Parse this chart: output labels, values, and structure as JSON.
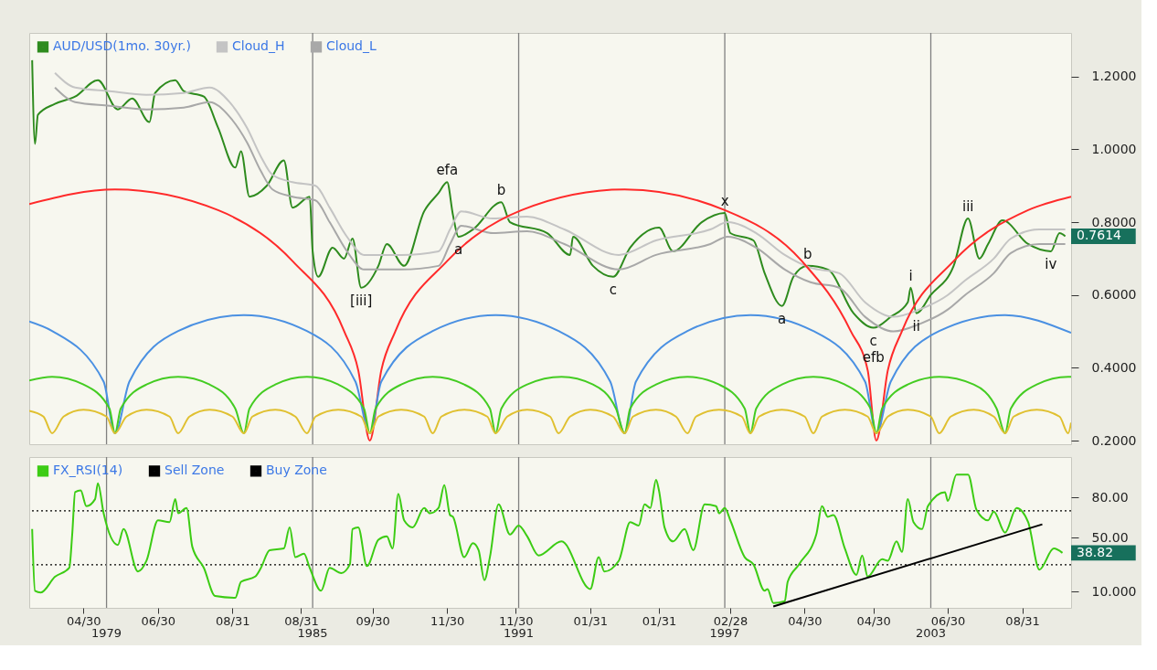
{
  "chart_data": [
    {
      "type": "line",
      "legend": "top left",
      "tick_labels": "y",
      "xlim": [
        "1976-10",
        "2007-02"
      ],
      "ylim": [
        0.19,
        1.32
      ],
      "yticks": [
        {
          "value": 0.2,
          "label": "0.2000"
        },
        {
          "value": 0.4,
          "label": "0.4000"
        },
        {
          "value": 0.6,
          "label": "0.6000"
        },
        {
          "value": 0.8,
          "label": "0.8000"
        },
        {
          "value": 1.0,
          "label": "1.0000"
        },
        {
          "value": 1.2,
          "label": "1.2000"
        }
      ],
      "series": [
        {
          "name": "AUD/USD(1mo. 30yr.)",
          "color": "#2e8b1e",
          "x": [
            "1976-11",
            "1976-12",
            "1977-01",
            "1977-07",
            "1978-02",
            "1978-10",
            "1979-05",
            "1979-10",
            "1980-04",
            "1980-06",
            "1981-01",
            "1981-04",
            "1981-11",
            "1982-04",
            "1982-10",
            "1982-12",
            "1983-03",
            "1983-09",
            "1984-03",
            "1984-06",
            "1984-12",
            "1985-01",
            "1985-03",
            "1985-08",
            "1985-12",
            "1986-03",
            "1986-06",
            "1986-12",
            "1987-03",
            "1987-09",
            "1988-04",
            "1988-09",
            "1988-12",
            "1989-02",
            "1989-04",
            "1989-09",
            "1990-07",
            "1990-10",
            "1991-11",
            "1992-07",
            "1992-08",
            "1993-03",
            "1993-10",
            "1994-04",
            "1995-02",
            "1995-07",
            "1996-05",
            "1997-01",
            "1997-03",
            "1997-11",
            "1998-03",
            "1998-09",
            "1999-01",
            "1999-06",
            "2000-01",
            "2000-10",
            "2001-05",
            "2001-11",
            "2002-05",
            "2002-06",
            "2002-08",
            "2003-01",
            "2003-09",
            "2004-02",
            "2004-06",
            "2004-09",
            "2005-02",
            "2005-11",
            "2006-07",
            "2006-10",
            "2006-12"
          ],
          "values": [
            1.245,
            1.015,
            1.095,
            1.125,
            1.145,
            1.19,
            1.11,
            1.14,
            1.075,
            1.155,
            1.19,
            1.16,
            1.145,
            1.06,
            0.95,
            0.995,
            0.87,
            0.9,
            0.97,
            0.84,
            0.87,
            0.72,
            0.65,
            0.73,
            0.7,
            0.755,
            0.62,
            0.68,
            0.74,
            0.68,
            0.83,
            0.88,
            0.91,
            0.82,
            0.76,
            0.78,
            0.855,
            0.8,
            0.77,
            0.71,
            0.76,
            0.68,
            0.65,
            0.73,
            0.785,
            0.72,
            0.8,
            0.825,
            0.77,
            0.75,
            0.66,
            0.57,
            0.65,
            0.68,
            0.67,
            0.55,
            0.51,
            0.54,
            0.58,
            0.62,
            0.55,
            0.6,
            0.68,
            0.81,
            0.7,
            0.74,
            0.805,
            0.74,
            0.72,
            0.77,
            0.7614
          ]
        },
        {
          "name": "Cloud_H",
          "color": "#c4c4c4",
          "x": [
            "1977-07",
            "1978-02",
            "1979-02",
            "1980-03",
            "1981-04",
            "1982-01",
            "1982-08",
            "1983-02",
            "1983-07",
            "1983-11",
            "1984-06",
            "1985-02",
            "1985-07",
            "1986-01",
            "1986-07",
            "1987-08",
            "1988-09",
            "1989-01",
            "1989-05",
            "1990-04",
            "1991-04",
            "1992-05",
            "1993-12",
            "1995-01",
            "1996-08",
            "1997-02",
            "1997-12",
            "1998-10",
            "1999-07",
            "2000-05",
            "2001-02",
            "2001-12",
            "2002-09",
            "2003-07",
            "2004-01",
            "2004-11",
            "2005-05",
            "2006-03",
            "2006-12"
          ],
          "values": [
            1.21,
            1.17,
            1.16,
            1.15,
            1.155,
            1.17,
            1.13,
            1.06,
            0.98,
            0.93,
            0.91,
            0.9,
            0.84,
            0.76,
            0.71,
            0.71,
            0.72,
            0.78,
            0.83,
            0.81,
            0.815,
            0.78,
            0.71,
            0.75,
            0.78,
            0.8,
            0.77,
            0.71,
            0.675,
            0.66,
            0.58,
            0.54,
            0.56,
            0.6,
            0.64,
            0.7,
            0.755,
            0.78,
            0.78
          ]
        },
        {
          "name": "Cloud_L",
          "color": "#a8a8a8",
          "x": [
            "1977-07",
            "1978-02",
            "1979-02",
            "1980-03",
            "1981-04",
            "1982-01",
            "1982-08",
            "1983-02",
            "1983-07",
            "1983-11",
            "1984-06",
            "1985-02",
            "1985-07",
            "1986-01",
            "1986-07",
            "1987-08",
            "1988-09",
            "1989-01",
            "1989-05",
            "1990-04",
            "1991-04",
            "1992-05",
            "1993-12",
            "1995-01",
            "1996-08",
            "1997-02",
            "1997-12",
            "1998-10",
            "1999-07",
            "2000-05",
            "2001-02",
            "2001-12",
            "2002-09",
            "2003-07",
            "2004-01",
            "2004-11",
            "2005-05",
            "2006-03",
            "2006-12"
          ],
          "values": [
            1.17,
            1.13,
            1.12,
            1.11,
            1.115,
            1.13,
            1.09,
            1.02,
            0.94,
            0.89,
            0.87,
            0.86,
            0.8,
            0.72,
            0.67,
            0.67,
            0.68,
            0.74,
            0.79,
            0.77,
            0.775,
            0.74,
            0.67,
            0.71,
            0.74,
            0.76,
            0.73,
            0.67,
            0.635,
            0.62,
            0.54,
            0.5,
            0.52,
            0.56,
            0.6,
            0.66,
            0.715,
            0.74,
            0.74
          ]
        },
        {
          "color": "#ff2a2a",
          "x": [
            "1976-10",
            "1979-04",
            "1982-04",
            "1984-06",
            "1985-12",
            "1986-05",
            "1986-09",
            "1987-01",
            "1987-06",
            "1988-12",
            "1991-02",
            "1994-02",
            "1997-01",
            "1999-04",
            "2000-09",
            "2001-03",
            "2001-06",
            "2001-10",
            "2002-03",
            "2003-09",
            "2005-11",
            "2007-02"
          ],
          "values": [
            0.85,
            0.89,
            0.833,
            0.693,
            0.501,
            0.393,
            0.2,
            0.393,
            0.501,
            0.693,
            0.833,
            0.89,
            0.833,
            0.693,
            0.501,
            0.393,
            0.2,
            0.393,
            0.501,
            0.693,
            0.833,
            0.87
          ]
        },
        {
          "color": "#4a90e2",
          "x": [
            "1976-10",
            "1977-06",
            "1978-12",
            "1979-04",
            "1979-09",
            "1981-02",
            "1983-01",
            "1984-11",
            "1986-04",
            "1986-09",
            "1987-01",
            "1988-07",
            "1990-05",
            "1992-03",
            "1993-09",
            "1994-02",
            "1994-06",
            "1995-12",
            "1997-10",
            "1999-08",
            "2001-02",
            "2001-06",
            "2001-11",
            "2003-04",
            "2005-03",
            "2007-02"
          ],
          "values": [
            0.527,
            0.501,
            0.362,
            0.22,
            0.362,
            0.501,
            0.545,
            0.501,
            0.362,
            0.22,
            0.362,
            0.501,
            0.545,
            0.501,
            0.362,
            0.22,
            0.362,
            0.501,
            0.545,
            0.501,
            0.362,
            0.22,
            0.362,
            0.501,
            0.545,
            0.496
          ]
        },
        {
          "color": "#44cc22",
          "x": [
            "1976-10",
            "1977-06",
            "1978-05",
            "1979-02",
            "1979-04",
            "1979-06",
            "1980-03",
            "1981-02",
            "1982-01",
            "1982-10",
            "1983-01",
            "1983-03",
            "1983-12",
            "1984-11",
            "1985-10",
            "1986-07",
            "1986-09",
            "1986-11",
            "1987-08",
            "1988-07",
            "1989-06",
            "1990-03",
            "1990-05",
            "1990-07",
            "1991-04",
            "1992-04",
            "1993-03",
            "1993-11",
            "1994-02",
            "1994-04",
            "1995-01",
            "1995-12",
            "1996-11",
            "1997-08",
            "1997-10",
            "1997-12",
            "1998-09",
            "1999-08",
            "2000-07",
            "2001-04",
            "2001-06",
            "2001-08",
            "2002-05",
            "2003-04",
            "2004-04",
            "2004-12",
            "2005-03",
            "2005-05",
            "2006-02",
            "2007-01",
            "2007-02"
          ],
          "values": [
            0.365,
            0.375,
            0.354,
            0.288,
            0.22,
            0.288,
            0.354,
            0.375,
            0.354,
            0.288,
            0.22,
            0.288,
            0.354,
            0.375,
            0.354,
            0.288,
            0.22,
            0.288,
            0.354,
            0.375,
            0.354,
            0.288,
            0.22,
            0.288,
            0.354,
            0.375,
            0.354,
            0.288,
            0.22,
            0.288,
            0.354,
            0.375,
            0.354,
            0.288,
            0.22,
            0.288,
            0.354,
            0.375,
            0.354,
            0.288,
            0.22,
            0.288,
            0.354,
            0.375,
            0.354,
            0.288,
            0.22,
            0.288,
            0.354,
            0.375,
            0.375
          ]
        },
        {
          "color": "#e0c030",
          "x": [
            "1976-10",
            "1977-03",
            "1977-06",
            "1977-10",
            "1978-05",
            "1979-01",
            "1979-04",
            "1979-08",
            "1980-03",
            "1980-11",
            "1981-02",
            "1981-06",
            "1982-01",
            "1982-09",
            "1983-01",
            "1983-04",
            "1983-12",
            "1984-07",
            "1984-11",
            "1985-02",
            "1985-10",
            "1986-06",
            "1986-09",
            "1986-12",
            "1987-08",
            "1988-04",
            "1988-07",
            "1988-10",
            "1989-06",
            "1990-02",
            "1990-05",
            "1990-09",
            "1991-04",
            "1991-12",
            "1992-03",
            "1992-07",
            "1993-02",
            "1993-10",
            "1994-02",
            "1994-05",
            "1995-01",
            "1995-08",
            "1995-12",
            "1996-03",
            "1996-11",
            "1997-07",
            "1997-10",
            "1998-01",
            "1998-09",
            "1999-05",
            "1999-08",
            "1999-11",
            "2000-07",
            "2001-03",
            "2001-06",
            "2001-10",
            "2002-05",
            "2003-01",
            "2003-04",
            "2003-08",
            "2004-04",
            "2004-11",
            "2005-03",
            "2005-06",
            "2006-02",
            "2006-10",
            "2007-01",
            "2007-02"
          ],
          "values": [
            0.282,
            0.266,
            0.22,
            0.266,
            0.285,
            0.266,
            0.22,
            0.266,
            0.285,
            0.266,
            0.22,
            0.266,
            0.285,
            0.266,
            0.22,
            0.266,
            0.285,
            0.266,
            0.22,
            0.266,
            0.285,
            0.266,
            0.22,
            0.266,
            0.285,
            0.266,
            0.22,
            0.266,
            0.285,
            0.266,
            0.22,
            0.266,
            0.285,
            0.266,
            0.22,
            0.266,
            0.285,
            0.266,
            0.22,
            0.266,
            0.285,
            0.266,
            0.22,
            0.266,
            0.285,
            0.266,
            0.22,
            0.266,
            0.285,
            0.266,
            0.22,
            0.266,
            0.285,
            0.266,
            0.22,
            0.266,
            0.285,
            0.266,
            0.22,
            0.266,
            0.285,
            0.266,
            0.22,
            0.266,
            0.285,
            0.266,
            0.22,
            0.249
          ]
        }
      ],
      "ref_lines": [
        {
          "axis": "x",
          "value": "1979-01",
          "color": "#808080"
        },
        {
          "axis": "x",
          "value": "1985-01",
          "color": "#808080"
        },
        {
          "axis": "x",
          "value": "1991-01",
          "color": "#808080"
        },
        {
          "axis": "x",
          "value": "1997-01",
          "color": "#808080"
        },
        {
          "axis": "x",
          "value": "2003-01",
          "color": "#808080"
        }
      ],
      "annotations": [
        {
          "text": "efa",
          "x": "1988-12",
          "y": 0.91
        },
        {
          "text": "[iii]",
          "x": "1986-06",
          "y": 0.62
        },
        {
          "text": "a",
          "x": "1989-04",
          "y": 0.76
        },
        {
          "text": "b",
          "x": "1990-07",
          "y": 0.855
        },
        {
          "text": "c",
          "x": "1993-10",
          "y": 0.65
        },
        {
          "text": "x",
          "x": "1997-01",
          "y": 0.825
        },
        {
          "text": "a",
          "x": "1998-09",
          "y": 0.57
        },
        {
          "text": "b",
          "x": "1999-06",
          "y": 0.68
        },
        {
          "text": "c",
          "x": "2001-05",
          "y": 0.51
        },
        {
          "text": "efb",
          "x": "2001-05",
          "y": 0.51
        },
        {
          "text": "i",
          "x": "2002-06",
          "y": 0.62
        },
        {
          "text": "ii",
          "x": "2002-08",
          "y": 0.55
        },
        {
          "text": "iii",
          "x": "2004-02",
          "y": 0.81
        },
        {
          "text": "iv",
          "x": "2006-07",
          "y": 0.72
        },
        {
          "text": "0.7614",
          "x": "2006-12",
          "y": 0.7614
        }
      ]
    },
    {
      "type": "line",
      "legend": "top left",
      "xlim": [
        "1976-10",
        "2007-02"
      ],
      "ylim": [
        -2,
        110
      ],
      "xticks": [
        {
          "value": "1978-04-30",
          "label": "04/30"
        },
        {
          "value": "1980-06-30",
          "label": "06/30"
        },
        {
          "value": "1982-08-31",
          "label": "08/31"
        },
        {
          "value": "1984-08-31",
          "label": "08/31"
        },
        {
          "value": "1986-09-30",
          "label": "09/30"
        },
        {
          "value": "1988-11-30",
          "label": "11/30"
        },
        {
          "value": "1990-11-30",
          "label": "11/30"
        },
        {
          "value": "1993-01-31",
          "label": "01/31"
        },
        {
          "value": "1995-01-31",
          "label": "01/31"
        },
        {
          "value": "1997-02-28",
          "label": "02/28"
        },
        {
          "value": "1999-04-30",
          "label": "04/30"
        },
        {
          "value": "2001-04-30",
          "label": "04/30"
        },
        {
          "value": "2003-06-30",
          "label": "06/30"
        },
        {
          "value": "2005-08-31",
          "label": "08/31"
        }
      ],
      "yticks": [
        {
          "value": 10,
          "label": "10.000"
        },
        {
          "value": 50,
          "label": "50.00"
        },
        {
          "value": 80,
          "label": "80.00"
        }
      ],
      "series": [
        {
          "name": "FX_RSI(14)",
          "color": "#3ccc14",
          "x": [
            "1976-11",
            "1976-12",
            "1977-02",
            "1977-07",
            "1977-12",
            "1978-01",
            "1978-02",
            "1978-04",
            "1978-06",
            "1978-09",
            "1978-10",
            "1978-12",
            "1979-05",
            "1979-07",
            "1979-12",
            "1980-03",
            "1980-07",
            "1980-11",
            "1981-01",
            "1981-02",
            "1981-05",
            "1981-07",
            "1981-11",
            "1982-03",
            "1982-10",
            "1982-12",
            "1983-05",
            "1983-07",
            "1983-10",
            "1984-03",
            "1984-05",
            "1984-07",
            "1984-10",
            "1984-12",
            "1985-04",
            "1985-07",
            "1985-11",
            "1986-02",
            "1986-03",
            "1986-05",
            "1986-08",
            "1986-12",
            "1987-03",
            "1987-05",
            "1987-07",
            "1987-09",
            "1987-12",
            "1988-04",
            "1988-06",
            "1988-09",
            "1988-11",
            "1989-01",
            "1989-02",
            "1989-06",
            "1989-09",
            "1989-11",
            "1990-01",
            "1990-03",
            "1990-06",
            "1990-10",
            "1991-01",
            "1991-04",
            "1991-08",
            "1992-04",
            "1993-02",
            "1993-05",
            "1993-07",
            "1993-12",
            "1994-04",
            "1994-07",
            "1994-09",
            "1994-11",
            "1995-01",
            "1995-02",
            "1995-04",
            "1995-07",
            "1995-11",
            "1996-02",
            "1996-06",
            "1996-10",
            "1996-11",
            "1997-01",
            "1997-03",
            "1997-08",
            "1997-11",
            "1998-03",
            "1998-04",
            "1998-06",
            "1998-10",
            "1998-11",
            "1999-03",
            "1999-09",
            "1999-11",
            "2000-01",
            "2000-03",
            "2000-07",
            "2000-11",
            "2001-01",
            "2001-03",
            "2001-08",
            "2001-10",
            "2002-01",
            "2002-03",
            "2002-05",
            "2002-07",
            "2002-10",
            "2002-12",
            "2003-06",
            "2003-07",
            "2003-10",
            "2004-02",
            "2004-05",
            "2004-09",
            "2004-11",
            "2005-03",
            "2005-07",
            "2005-11",
            "2006-03",
            "2006-08",
            "2006-11"
          ],
          "values": [
            56.5,
            10.7,
            9.4,
            21,
            27.7,
            52.5,
            84,
            85.2,
            73.5,
            78.7,
            90.5,
            68.2,
            44.7,
            56.5,
            25,
            33,
            63,
            61.7,
            78.7,
            68.2,
            72.2,
            43.4,
            27.7,
            6.8,
            5.5,
            17.3,
            21.2,
            27.7,
            40.8,
            42.1,
            57.8,
            35.6,
            38.2,
            27.7,
            10.7,
            27.7,
            23.8,
            30.3,
            56.5,
            57.8,
            29,
            48.6,
            51.2,
            42.1,
            82.6,
            63,
            57.8,
            72.2,
            68.2,
            72.2,
            89.2,
            66.9,
            65.6,
            35.6,
            46,
            40.8,
            18.6,
            35.6,
            74.8,
            52.5,
            59.1,
            51.2,
            36.9,
            47.3,
            12,
            35.6,
            25,
            33,
            61.7,
            59.1,
            74.8,
            72.2,
            93,
            85.2,
            57.8,
            47.3,
            56.5,
            40.8,
            74.8,
            73.5,
            68.2,
            72.2,
            63,
            35.6,
            30.3,
            10.7,
            12,
            1.6,
            2.9,
            17.3,
            30.3,
            52.5,
            73.5,
            65.6,
            66.9,
            42.1,
            22.5,
            36.9,
            21.2,
            34.2,
            33,
            47.3,
            39.5,
            78.7,
            61.7,
            56.5,
            73.5,
            83.9,
            77.4,
            97,
            97,
            70.8,
            63,
            69.5,
            53.9,
            72.2,
            61.7,
            26.4,
            42.1,
            38.82
          ]
        },
        {
          "color": "#000000",
          "x": [
            "1998-06",
            "2006-04"
          ],
          "values": [
            -1,
            60
          ]
        }
      ],
      "ref_lines": [
        {
          "axis": "y",
          "value": 70,
          "label": "Sell Zone",
          "color": "#000000",
          "line_style": "dotted"
        },
        {
          "axis": "y",
          "value": 30,
          "label": "Buy Zone",
          "color": "#000000",
          "line_style": "dotted"
        },
        {
          "axis": "x",
          "value": "1979-01",
          "label": "1979",
          "color": "#808080"
        },
        {
          "axis": "x",
          "value": "1985-01",
          "label": "1985",
          "color": "#808080"
        },
        {
          "axis": "x",
          "value": "1991-01",
          "label": "1991",
          "color": "#808080"
        },
        {
          "axis": "x",
          "value": "1997-01",
          "label": "1997",
          "color": "#808080"
        },
        {
          "axis": "x",
          "value": "2003-01",
          "label": "2003",
          "color": "#808080"
        }
      ],
      "annotations": [
        {
          "text": "38.82",
          "x": "2006-11",
          "y": 38.82
        }
      ]
    }
  ]
}
